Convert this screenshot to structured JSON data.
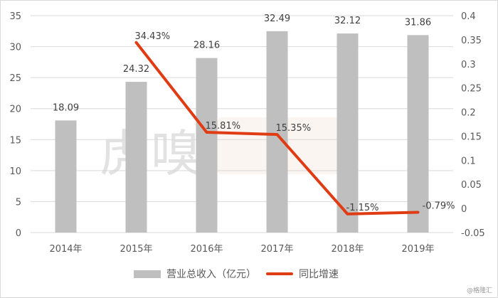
{
  "chart_data": {
    "type": "bar+line",
    "categories": [
      "2014年",
      "2015年",
      "2016年",
      "2017年",
      "2018年",
      "2019年"
    ],
    "series": [
      {
        "name": "营业总收入（亿元）",
        "type": "bar",
        "axis": "left",
        "color": "#bfbfbf",
        "values": [
          18.09,
          24.32,
          28.16,
          32.49,
          32.12,
          31.86
        ],
        "labels": [
          "18.09",
          "24.32",
          "28.16",
          "32.49",
          "32.12",
          "31.86"
        ]
      },
      {
        "name": "同比增速",
        "type": "line",
        "axis": "right",
        "color": "#e03c14",
        "values": [
          null,
          0.3443,
          0.1581,
          0.1535,
          -0.0115,
          -0.0079
        ],
        "labels": [
          "",
          "34.43%",
          "15.81%",
          "15.35%",
          "-1.15%",
          "-0.79%"
        ]
      }
    ],
    "left_axis": {
      "min": 0,
      "max": 35,
      "step": 5,
      "ticks": [
        "0",
        "5",
        "10",
        "15",
        "20",
        "25",
        "30",
        "35"
      ]
    },
    "right_axis": {
      "min": -0.05,
      "max": 0.4,
      "step": 0.05,
      "ticks": [
        "-0.05",
        "0",
        "0.05",
        "0.1",
        "0.15",
        "0.2",
        "0.25",
        "0.3",
        "0.35",
        "0.4"
      ]
    },
    "grid": true,
    "legend_position": "bottom"
  },
  "legend": {
    "bar_label": "营业总收入（亿元）",
    "line_label": "同比增速"
  },
  "watermark": "虎嗅",
  "credit": "@格隆汇"
}
